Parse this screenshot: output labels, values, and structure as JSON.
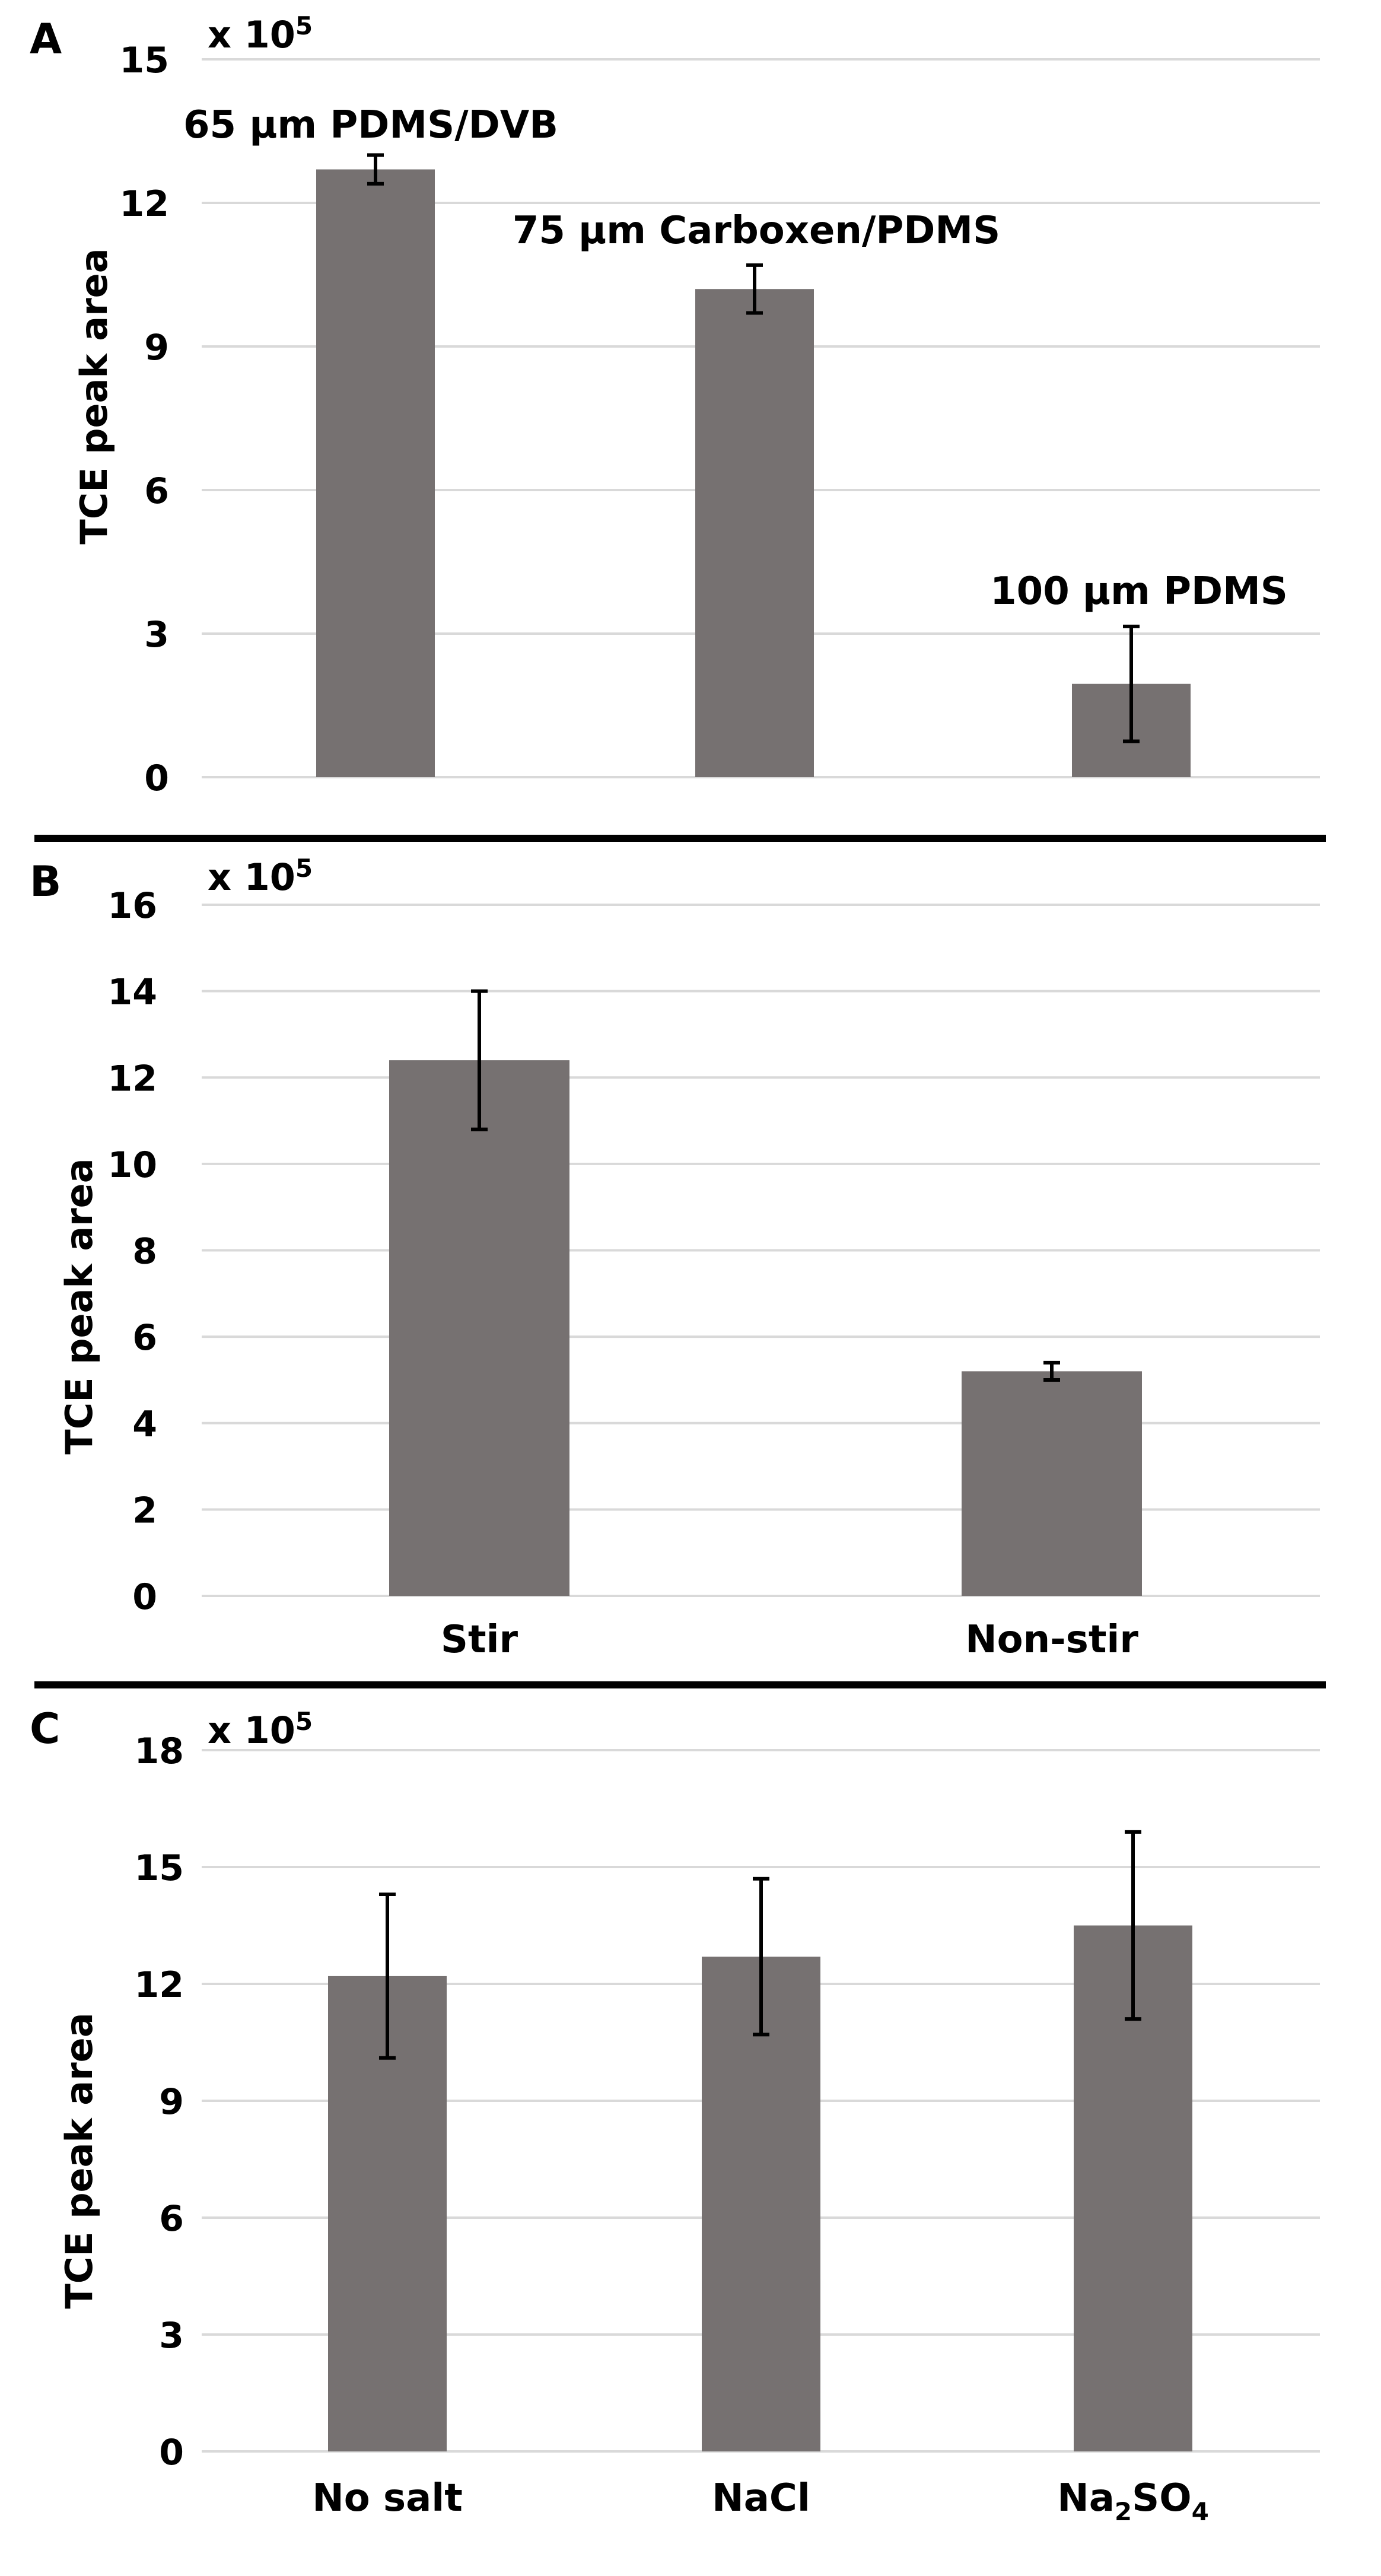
{
  "colors": {
    "bar": "#767171",
    "grid": "#d9d9d9",
    "text": "#000000",
    "background": "#ffffff"
  },
  "chart_data": [
    {
      "panel": "A",
      "type": "bar",
      "title": "",
      "xlabel": "",
      "ylabel": "TCE peak area",
      "scale_label": "x 10",
      "scale_exponent": "5",
      "ylim": [
        0,
        15
      ],
      "yticks": [
        0,
        3,
        6,
        9,
        12,
        15
      ],
      "grid": true,
      "categories": [
        "65 µm PDMS/DVB",
        "75 µm Carboxen/PDMS",
        "100 µm PDMS"
      ],
      "category_labels_position": "above-bars",
      "values": [
        12.7,
        10.2,
        1.95
      ],
      "errors": [
        0.3,
        0.5,
        1.2
      ]
    },
    {
      "panel": "B",
      "type": "bar",
      "title": "",
      "xlabel": "",
      "ylabel": "TCE peak area",
      "scale_label": "x 10",
      "scale_exponent": "5",
      "ylim": [
        0,
        16
      ],
      "yticks": [
        0,
        2,
        4,
        6,
        8,
        10,
        12,
        14,
        16
      ],
      "grid": true,
      "categories": [
        "Stir",
        "Non-stir"
      ],
      "category_labels_position": "below-axis",
      "values": [
        12.4,
        5.2
      ],
      "errors": [
        1.6,
        0.2
      ]
    },
    {
      "panel": "C",
      "type": "bar",
      "title": "",
      "xlabel": "",
      "ylabel": "TCE peak area",
      "scale_label": "x 10",
      "scale_exponent": "5",
      "ylim": [
        0,
        18
      ],
      "yticks": [
        0,
        3,
        6,
        9,
        12,
        15,
        18
      ],
      "grid": true,
      "categories": [
        "No salt",
        "NaCl",
        "Na2SO4"
      ],
      "category_labels_position": "below-axis",
      "values": [
        12.2,
        12.7,
        13.5
      ],
      "errors": [
        2.1,
        2.0,
        2.4
      ]
    }
  ]
}
